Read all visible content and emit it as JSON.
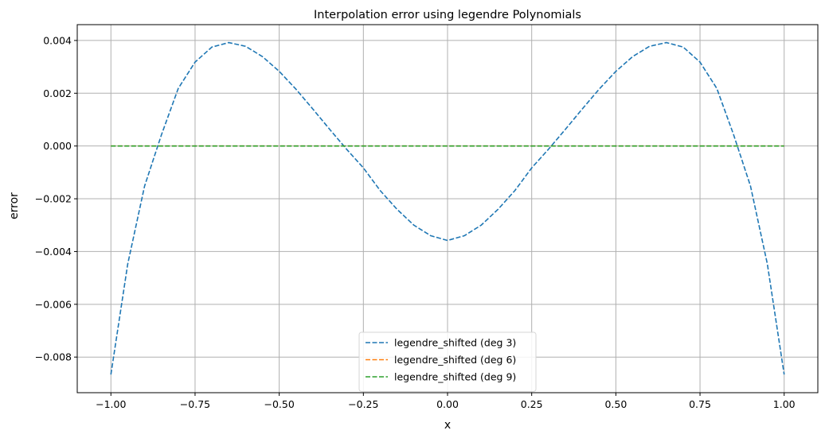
{
  "chart_data": {
    "type": "line",
    "title": "Interpolation error using legendre Polynomials",
    "xlabel": "x",
    "ylabel": "error",
    "xlim": [
      -1.1,
      1.1
    ],
    "ylim": [
      -0.00935,
      0.0046
    ],
    "grid": true,
    "legend_position": "bottom-center",
    "x_ticks": [
      -1.0,
      -0.75,
      -0.5,
      -0.25,
      0.0,
      0.25,
      0.5,
      0.75,
      1.0
    ],
    "x_tick_labels": [
      "−1.00",
      "−0.75",
      "−0.50",
      "−0.25",
      "0.00",
      "0.25",
      "0.50",
      "0.75",
      "1.00"
    ],
    "y_ticks": [
      -0.008,
      -0.006,
      -0.004,
      -0.002,
      0.0,
      0.002,
      0.004
    ],
    "y_tick_labels": [
      "−0.008",
      "−0.006",
      "−0.004",
      "−0.002",
      "0.000",
      "0.002",
      "0.004"
    ],
    "x": [
      -1.0,
      -0.95,
      -0.9,
      -0.85,
      -0.8,
      -0.75,
      -0.7,
      -0.65,
      -0.6,
      -0.55,
      -0.5,
      -0.45,
      -0.4,
      -0.35,
      -0.3,
      -0.25,
      -0.2,
      -0.15,
      -0.1,
      -0.05,
      0.0,
      0.05,
      0.1,
      0.15,
      0.2,
      0.25,
      0.3,
      0.35,
      0.4,
      0.45,
      0.5,
      0.55,
      0.6,
      0.65,
      0.7,
      0.75,
      0.8,
      0.85,
      0.9,
      0.95,
      1.0
    ],
    "series": [
      {
        "name": "legendre_shifted (deg 3)",
        "color": "#1f77b4",
        "style": "dashed",
        "values": [
          -0.00866,
          -0.00447,
          -0.00152,
          0.00042,
          0.00218,
          0.00318,
          0.00375,
          0.00392,
          0.00378,
          0.00339,
          0.00283,
          0.00215,
          0.0014,
          0.00063,
          -0.00012,
          -0.00083,
          -0.00169,
          -0.0024,
          -0.003,
          -0.0034,
          -0.00358,
          -0.0034,
          -0.003,
          -0.0024,
          -0.00169,
          -0.00083,
          -0.00012,
          0.00063,
          0.0014,
          0.00215,
          0.00283,
          0.00339,
          0.00378,
          0.00392,
          0.00375,
          0.00318,
          0.00218,
          0.00042,
          -0.00152,
          -0.00447,
          -0.00866
        ]
      },
      {
        "name": "legendre_shifted (deg 6)",
        "color": "#ff7f0e",
        "style": "dashed",
        "values": [
          0,
          0,
          0,
          0,
          0,
          0,
          0,
          0,
          0,
          0,
          0,
          0,
          0,
          0,
          0,
          0,
          0,
          0,
          0,
          0,
          0,
          0,
          0,
          0,
          0,
          0,
          0,
          0,
          0,
          0,
          0,
          0,
          0,
          0,
          0,
          0,
          0,
          0,
          0,
          0,
          0
        ]
      },
      {
        "name": "legendre_shifted (deg 9)",
        "color": "#2ca02c",
        "style": "dashed",
        "values": [
          0,
          0,
          0,
          0,
          0,
          0,
          0,
          0,
          0,
          0,
          0,
          0,
          0,
          0,
          0,
          0,
          0,
          0,
          0,
          0,
          0,
          0,
          0,
          0,
          0,
          0,
          0,
          0,
          0,
          0,
          0,
          0,
          0,
          0,
          0,
          0,
          0,
          0,
          0,
          0,
          0
        ]
      }
    ]
  }
}
